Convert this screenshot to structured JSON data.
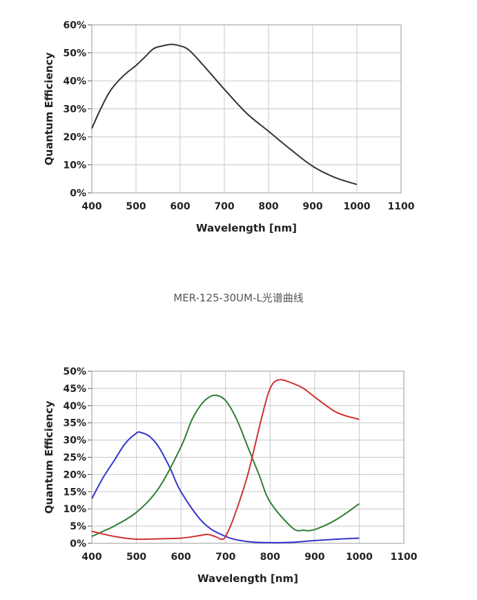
{
  "caption": "MER-125-30UM-L光谱曲线",
  "chart_data": [
    {
      "type": "line",
      "title": "",
      "xlabel": "Wavelength [nm]",
      "ylabel": "Quantum Efficiency",
      "xlim": [
        400,
        1100
      ],
      "ylim": [
        0,
        60
      ],
      "xticks": [
        "400",
        "500",
        "600",
        "700",
        "800",
        "900",
        "1000",
        "1100"
      ],
      "yticks": [
        "0%",
        "10%",
        "20%",
        "30%",
        "40%",
        "50%",
        "60%"
      ],
      "grid": true,
      "series": [
        {
          "color": "#333333",
          "x": [
            400,
            420,
            440,
            460,
            480,
            500,
            520,
            540,
            560,
            580,
            600,
            620,
            650,
            700,
            750,
            800,
            850,
            900,
            950,
            1000
          ],
          "y": [
            23,
            30,
            36,
            40,
            43,
            45.5,
            48.5,
            51.5,
            52.5,
            53,
            52.5,
            51,
            46,
            37,
            28.5,
            22,
            15.5,
            9.5,
            5.5,
            3
          ]
        }
      ]
    },
    {
      "type": "line",
      "title": "",
      "xlabel": "Wavelength [nm]",
      "ylabel": "Quantum Efficiency",
      "xlim": [
        400,
        1100
      ],
      "ylim": [
        0,
        50
      ],
      "xticks": [
        "400",
        "500",
        "600",
        "700",
        "800",
        "900",
        "1000",
        "1100"
      ],
      "yticks": [
        "0%",
        "5%",
        "10%",
        "15%",
        "20%",
        "25%",
        "30%",
        "35%",
        "40%",
        "45%",
        "50%"
      ],
      "grid": true,
      "series": [
        {
          "color": "#3333cc",
          "x": [
            400,
            425,
            450,
            475,
            500,
            510,
            530,
            550,
            575,
            600,
            650,
            700,
            750,
            800,
            850,
            900,
            950,
            1000
          ],
          "y": [
            13,
            19,
            24,
            29,
            32,
            32.2,
            31,
            28,
            22,
            15,
            6,
            2,
            0.5,
            0.2,
            0.3,
            0.8,
            1.2,
            1.5
          ]
        },
        {
          "color": "#2e7d32",
          "x": [
            400,
            425,
            450,
            500,
            550,
            600,
            625,
            650,
            675,
            700,
            725,
            750,
            775,
            800,
            850,
            875,
            900,
            950,
            1000
          ],
          "y": [
            2,
            3.5,
            5,
            9,
            16,
            28,
            36,
            41,
            43,
            41.5,
            36,
            28,
            20,
            12,
            4.5,
            3.8,
            4,
            7,
            11.5
          ]
        },
        {
          "color": "#d03030",
          "x": [
            400,
            450,
            500,
            550,
            600,
            640,
            660,
            680,
            690,
            700,
            720,
            750,
            780,
            800,
            820,
            850,
            875,
            900,
            950,
            1000
          ],
          "y": [
            3.5,
            2,
            1.2,
            1.3,
            1.5,
            2.2,
            2.6,
            1.8,
            1.2,
            2,
            8,
            20,
            36,
            45,
            47.5,
            46.5,
            45,
            42.5,
            38,
            36
          ]
        }
      ]
    }
  ]
}
